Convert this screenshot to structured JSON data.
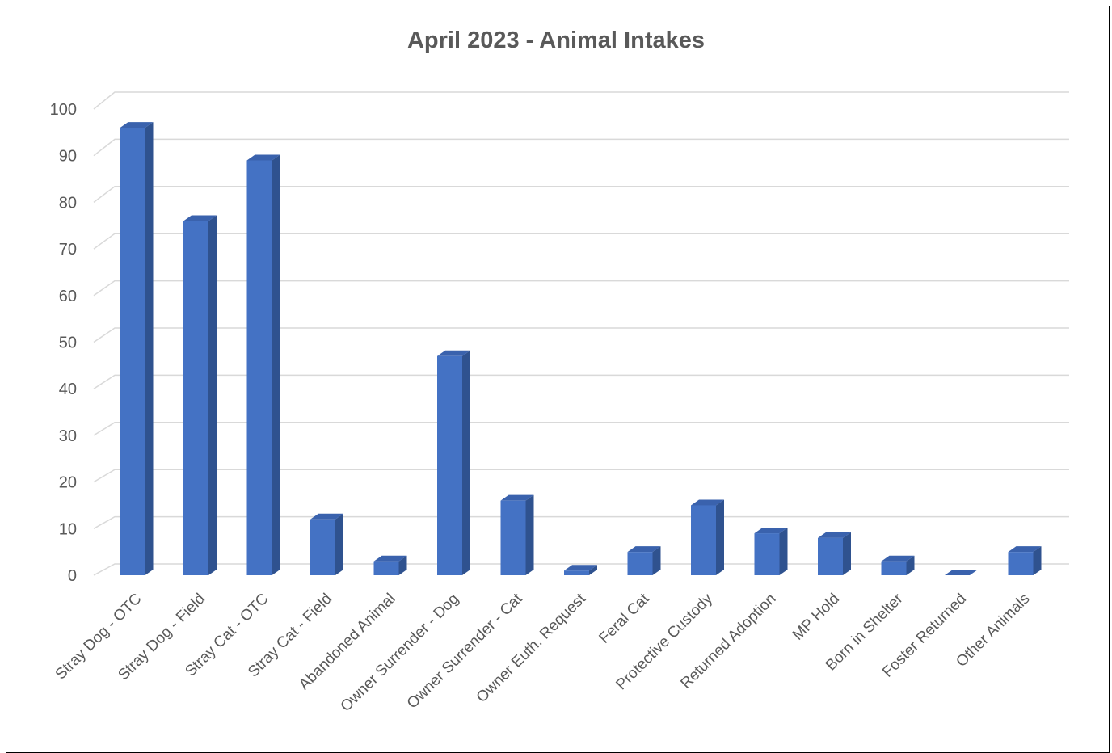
{
  "chart_data": {
    "type": "bar",
    "title": "April 2023 - Animal Intakes",
    "xlabel": "",
    "ylabel": "",
    "ylim": [
      0,
      100
    ],
    "yticks": [
      0,
      10,
      20,
      30,
      40,
      50,
      60,
      70,
      80,
      90,
      100
    ],
    "grid": true,
    "legend": "none",
    "style": "3d-column",
    "colors": {
      "bar_front": "#4472C4",
      "bar_side": "#2F528F",
      "bar_top": "#3A62AD",
      "grid": "#D9D9D9",
      "text": "#595959"
    },
    "categories": [
      "Stray Dog - OTC",
      "Stray Dog - Field",
      "Stray Cat - OTC",
      "Stray Cat - Field",
      "Abandoned Animal",
      "Owner Surrender - Dog",
      "Owner Surrender - Cat",
      "Owner Euth. Request",
      "Feral Cat",
      "Protective Custody",
      "Returned Adoption",
      "MP Hold",
      "Born in Shelter",
      "Foster Returned",
      "Other Animals"
    ],
    "values": [
      96,
      76,
      89,
      12,
      3,
      47,
      16,
      1,
      5,
      15,
      9,
      8,
      3,
      0,
      5
    ]
  }
}
